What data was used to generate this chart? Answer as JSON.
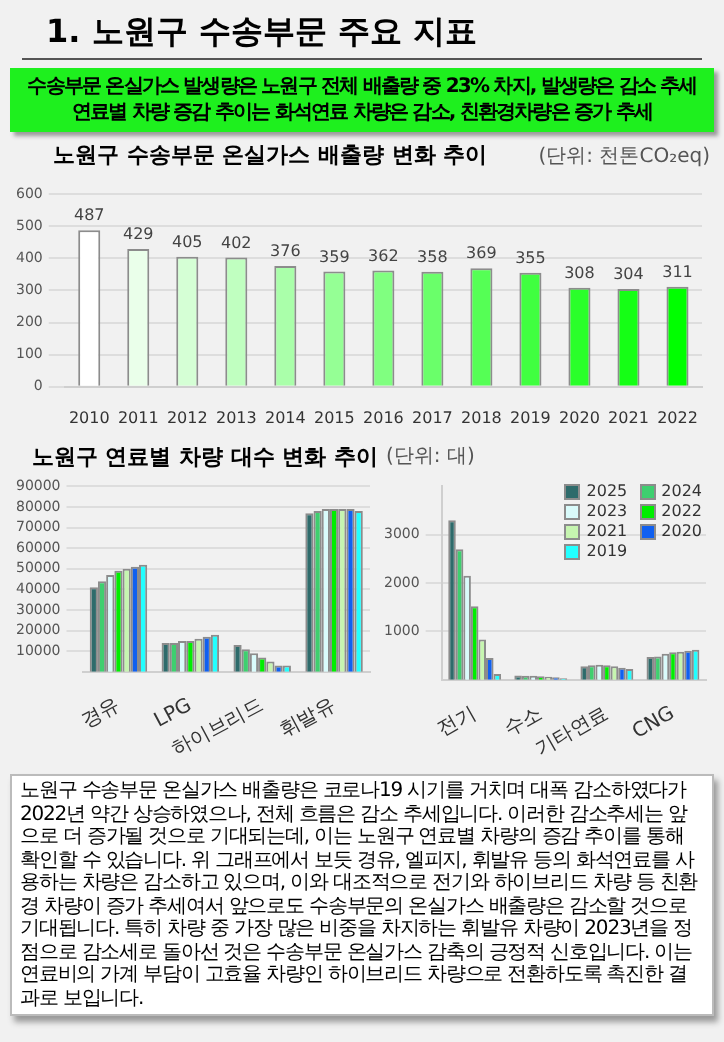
{
  "chart_data": [
    {
      "type": "other",
      "title": "1. 노원구 수송부문 주요 지표",
      "color": "#1ef01e",
      "annotations": [
        "수송부문 온실가스 발생량은 노원구 전체 배출량 중 23% 차지, 발생량은 감소 추세",
        "연료별 차량 증감 추이는 화석연료 차량은 감소, 친환경차량은 증가 추세"
      ]
    },
    {
      "type": "bar",
      "title": "노원구 수송부문 온실가스 배출량 변화 추이",
      "annotations": [
        "(단위: 천톤CO₂eq)"
      ],
      "categories": [
        "2010",
        "2011",
        "2012",
        "2013",
        "2014",
        "2015",
        "2016",
        "2017",
        "2018",
        "2019",
        "2020",
        "2021",
        "2022"
      ],
      "values": [
        487,
        429,
        405,
        402,
        376,
        359,
        362,
        358,
        369,
        355,
        308,
        304,
        311
      ],
      "colors": [
        "#ffffff",
        "#eaffea",
        "#d5ffd5",
        "#c0ffc0",
        "#aaffaa",
        "#95ff95",
        "#80ff80",
        "#6aff6a",
        "#55ff55",
        "#40ff40",
        "#2aff2a",
        "#15ff15",
        "#00ff00"
      ],
      "ylim": [
        0,
        600
      ],
      "yticks": [
        0,
        100,
        200,
        300,
        400,
        500,
        600
      ],
      "grid": "y",
      "data_labels": true
    },
    {
      "type": "bar",
      "title": "노원구 연료별 차량 대수 변화 추이",
      "categories": [
        "경유",
        "LPG",
        "하이브리드",
        "휘발유"
      ],
      "ylim": [
        0,
        90000
      ],
      "yticks": [
        10000,
        20000,
        30000,
        40000,
        50000,
        60000,
        70000,
        80000,
        90000
      ],
      "grid": "y",
      "series": [
        {
          "color": "#2e6b6b",
          "values": [
            41000,
            14000,
            13000,
            77000
          ]
        },
        {
          "color": "#3ecf6f",
          "values": [
            44000,
            14000,
            11000,
            78000
          ]
        },
        {
          "color": "#d9fbfb",
          "values": [
            47000,
            15000,
            9000,
            79000
          ]
        },
        {
          "color": "#00ee00",
          "values": [
            49000,
            15000,
            7000,
            79000
          ]
        },
        {
          "color": "#c6f5b0",
          "values": [
            50000,
            16000,
            5000,
            79000
          ]
        },
        {
          "color": "#1060f0",
          "values": [
            51000,
            17000,
            3000,
            79000
          ]
        },
        {
          "color": "#22ffff",
          "values": [
            52000,
            18000,
            3000,
            78000
          ]
        }
      ]
    },
    {
      "type": "bar",
      "annotations": [
        "(단위: 대)"
      ],
      "categories": [
        "전기",
        "수소",
        "기타연료",
        "CNG"
      ],
      "ylim": [
        0,
        4000
      ],
      "yticks": [
        1000,
        2000,
        3000
      ],
      "grid": "y",
      "legend": "top right",
      "series": [
        {
          "name": "2025",
          "color": "#2e6b6b",
          "values": [
            3300,
            90,
            280,
            470
          ]
        },
        {
          "name": "2024",
          "color": "#3ecf6f",
          "values": [
            2700,
            80,
            300,
            480
          ]
        },
        {
          "name": "2023",
          "color": "#d9fbfb",
          "values": [
            2150,
            80,
            310,
            540
          ]
        },
        {
          "name": "2022",
          "color": "#00ee00",
          "values": [
            1520,
            70,
            300,
            570
          ]
        },
        {
          "name": "2021",
          "color": "#c6f5b0",
          "values": [
            830,
            60,
            280,
            580
          ]
        },
        {
          "name": "2020",
          "color": "#1060f0",
          "values": [
            450,
            50,
            250,
            600
          ]
        },
        {
          "name": "2019",
          "color": "#22ffff",
          "values": [
            120,
            30,
            220,
            620
          ]
        }
      ]
    },
    {
      "type": "other",
      "color": "#ffffff",
      "annotations": [
        "노원구 수송부문 온실가스 배출량은 코로나19 시기를 거치며 대폭 감소하였다가 2022년 약간 상승하였으나, 전체 흐름은 감소 추세입니다. 이러한 감소추세는 앞으로 더 증가될 것으로 기대되는데, 이는 노원구 연료별 차량의 증감 추이를 통해 확인할 수 있습니다. 위 그래프에서 보듯 경유, 엘피지, 휘발유 등의 화석연료를 사용하는 차량은 감소하고 있으며, 이와 대조적으로 전기와 하이브리드 차량 등 친환경 차량이 증가 추세여서 앞으로도 수송부문의 온실가스 배출량은 감소할 것으로 기대됩니다. 특히 차량 중 가장 많은 비중을 차지하는 휘발유 차량이 2023년을 정점으로 감소세로 돌아선 것은 수송부문 온실가스 감축의 긍정적 신호입니다. 이는 연료비의 가계 부담이 고효율 차량인 하이브리드 차량으로 전환하도록 촉진한 결과로 보입니다."
      ]
    }
  ]
}
